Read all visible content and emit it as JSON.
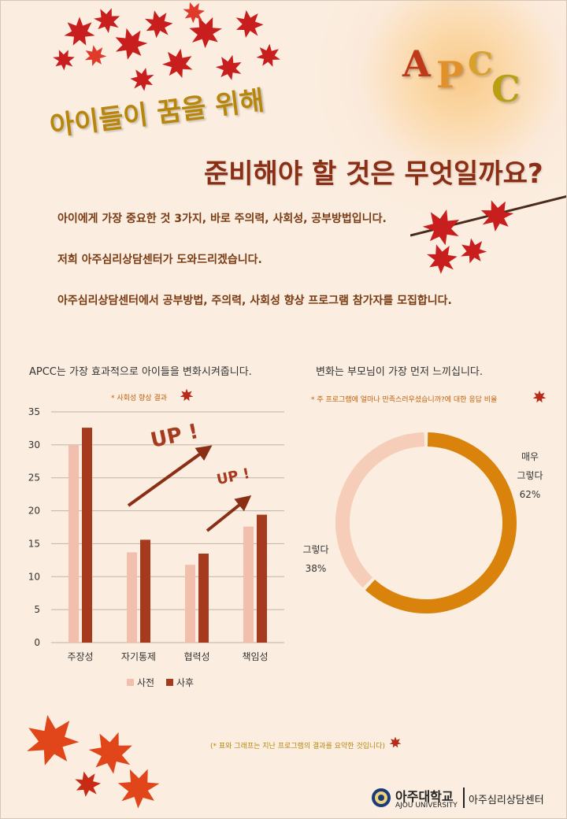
{
  "logo": {
    "letters": [
      "A",
      "P",
      "C",
      "C"
    ]
  },
  "title": {
    "line1": "아이들이 꿈을 위해",
    "line2": "준비해야 할 것은 무엇일까요?"
  },
  "intro": [
    "아이에게 가장 중요한 것 3가지, 바로 주의력, 사회성, 공부방법입니다.",
    "저희 아주심리상담센터가 도와드리겠습니다.",
    "아주심리상담센터에서 공부방법, 주의력, 사회성 향상 프로그램 참가자를 모집합니다."
  ],
  "left_section": {
    "heading": "APCC는 가장 효과적으로 아이들을 변화시켜줍니다.",
    "note": "* 사회성 향상 결과"
  },
  "right_section": {
    "heading": "변화는 부모님이 가장 먼저 느끼십니다.",
    "note": "* 주 프로그램에 얼마나 만족스러우셨습니까?에 대한 응답 비율"
  },
  "annotations": {
    "up1": "UP !",
    "up2": "UP !"
  },
  "footer": {
    "note": "(* 표와 그래프는 지난 프로그램의 결과를 요약한 것입니다)",
    "university_kr": "아주대학교",
    "university_en": "AJOU UNIVERSITY",
    "center": "아주심리상담센터"
  },
  "colors": {
    "before": "#f2bfae",
    "after": "#a63a1e",
    "very": "#d9820c",
    "agree": "#f6cdb8",
    "title_gold": "#b8860b",
    "title_brown": "#8b2e16"
  },
  "chart_data": [
    {
      "type": "bar",
      "categories": [
        "주장성",
        "자기통제",
        "협력성",
        "책임성"
      ],
      "series": [
        {
          "name": "사전",
          "values": [
            30,
            13.7,
            11.8,
            17.6
          ]
        },
        {
          "name": "사후",
          "values": [
            32.6,
            15.6,
            13.5,
            19.4
          ]
        }
      ],
      "ylim": [
        0,
        35
      ],
      "yticks": [
        0,
        5,
        10,
        15,
        20,
        25,
        30,
        35
      ],
      "grid": true,
      "legend": "bottom"
    },
    {
      "type": "pie",
      "donut": true,
      "slices": [
        {
          "label": "매우 그렇다",
          "label_lines": [
            "매우",
            "그렇다"
          ],
          "value": 62,
          "display": "62%"
        },
        {
          "label": "그렇다",
          "label_lines": [
            "그렇다"
          ],
          "value": 38,
          "display": "38%"
        }
      ]
    }
  ]
}
